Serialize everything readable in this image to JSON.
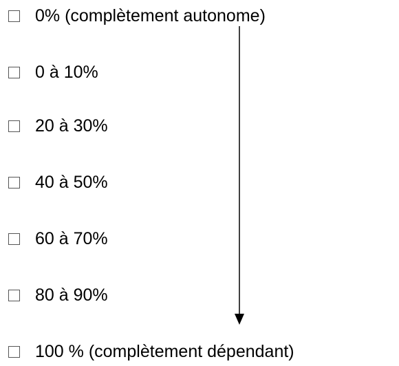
{
  "options": [
    {
      "label": "0% (complètement autonome)"
    },
    {
      "label": "0 à 10%"
    },
    {
      "label": "20 à 30%"
    },
    {
      "label": "40 à 50%"
    },
    {
      "label": "60 à 70%"
    },
    {
      "label": "80 à 90%"
    },
    {
      "label": "100 % (complètement dépendant)"
    }
  ]
}
